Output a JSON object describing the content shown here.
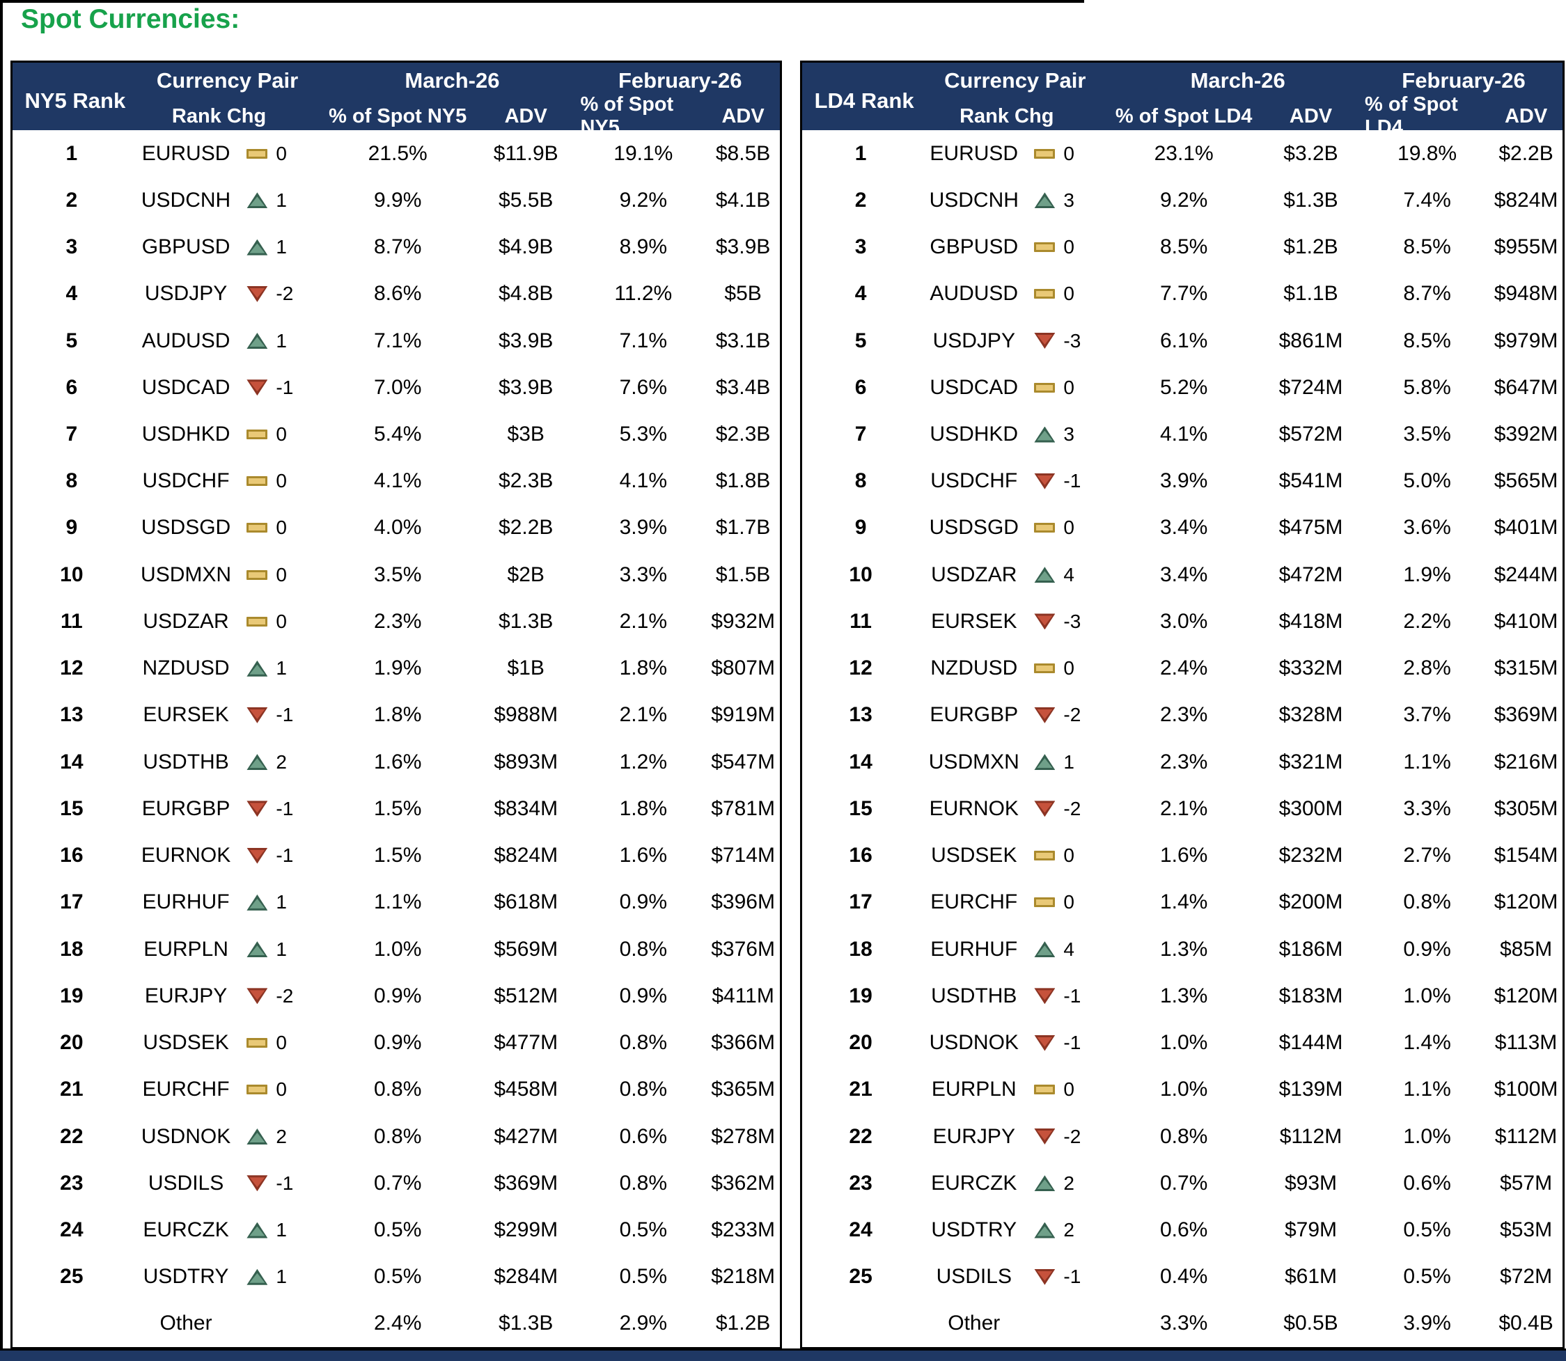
{
  "title": "Spot Currencies:",
  "colors": {
    "header_bg": "#1F3864",
    "title_green": "#17A24B",
    "up_icon": "#6FA089",
    "down_icon": "#C6523C",
    "flat_icon": "#E9C977"
  },
  "tables": [
    {
      "id": "ny5",
      "rank_header": "NY5 Rank",
      "columns": {
        "currency_pair": "Currency Pair",
        "rank_chg": "Rank Chg",
        "march": "March-26",
        "february": "February-26",
        "pct": "% of Spot NY5",
        "adv": "ADV"
      },
      "rows": [
        {
          "rank": "1",
          "pair": "EURUSD",
          "dir": "flat",
          "chg": "0",
          "mar_pct": "21.5%",
          "mar_adv": "$11.9B",
          "feb_pct": "19.1%",
          "feb_adv": "$8.5B"
        },
        {
          "rank": "2",
          "pair": "USDCNH",
          "dir": "up",
          "chg": "1",
          "mar_pct": "9.9%",
          "mar_adv": "$5.5B",
          "feb_pct": "9.2%",
          "feb_adv": "$4.1B"
        },
        {
          "rank": "3",
          "pair": "GBPUSD",
          "dir": "up",
          "chg": "1",
          "mar_pct": "8.7%",
          "mar_adv": "$4.9B",
          "feb_pct": "8.9%",
          "feb_adv": "$3.9B"
        },
        {
          "rank": "4",
          "pair": "USDJPY",
          "dir": "down",
          "chg": "-2",
          "mar_pct": "8.6%",
          "mar_adv": "$4.8B",
          "feb_pct": "11.2%",
          "feb_adv": "$5B"
        },
        {
          "rank": "5",
          "pair": "AUDUSD",
          "dir": "up",
          "chg": "1",
          "mar_pct": "7.1%",
          "mar_adv": "$3.9B",
          "feb_pct": "7.1%",
          "feb_adv": "$3.1B"
        },
        {
          "rank": "6",
          "pair": "USDCAD",
          "dir": "down",
          "chg": "-1",
          "mar_pct": "7.0%",
          "mar_adv": "$3.9B",
          "feb_pct": "7.6%",
          "feb_adv": "$3.4B"
        },
        {
          "rank": "7",
          "pair": "USDHKD",
          "dir": "flat",
          "chg": "0",
          "mar_pct": "5.4%",
          "mar_adv": "$3B",
          "feb_pct": "5.3%",
          "feb_adv": "$2.3B"
        },
        {
          "rank": "8",
          "pair": "USDCHF",
          "dir": "flat",
          "chg": "0",
          "mar_pct": "4.1%",
          "mar_adv": "$2.3B",
          "feb_pct": "4.1%",
          "feb_adv": "$1.8B"
        },
        {
          "rank": "9",
          "pair": "USDSGD",
          "dir": "flat",
          "chg": "0",
          "mar_pct": "4.0%",
          "mar_adv": "$2.2B",
          "feb_pct": "3.9%",
          "feb_adv": "$1.7B"
        },
        {
          "rank": "10",
          "pair": "USDMXN",
          "dir": "flat",
          "chg": "0",
          "mar_pct": "3.5%",
          "mar_adv": "$2B",
          "feb_pct": "3.3%",
          "feb_adv": "$1.5B"
        },
        {
          "rank": "11",
          "pair": "USDZAR",
          "dir": "flat",
          "chg": "0",
          "mar_pct": "2.3%",
          "mar_adv": "$1.3B",
          "feb_pct": "2.1%",
          "feb_adv": "$932M"
        },
        {
          "rank": "12",
          "pair": "NZDUSD",
          "dir": "up",
          "chg": "1",
          "mar_pct": "1.9%",
          "mar_adv": "$1B",
          "feb_pct": "1.8%",
          "feb_adv": "$807M"
        },
        {
          "rank": "13",
          "pair": "EURSEK",
          "dir": "down",
          "chg": "-1",
          "mar_pct": "1.8%",
          "mar_adv": "$988M",
          "feb_pct": "2.1%",
          "feb_adv": "$919M"
        },
        {
          "rank": "14",
          "pair": "USDTHB",
          "dir": "up",
          "chg": "2",
          "mar_pct": "1.6%",
          "mar_adv": "$893M",
          "feb_pct": "1.2%",
          "feb_adv": "$547M"
        },
        {
          "rank": "15",
          "pair": "EURGBP",
          "dir": "down",
          "chg": "-1",
          "mar_pct": "1.5%",
          "mar_adv": "$834M",
          "feb_pct": "1.8%",
          "feb_adv": "$781M"
        },
        {
          "rank": "16",
          "pair": "EURNOK",
          "dir": "down",
          "chg": "-1",
          "mar_pct": "1.5%",
          "mar_adv": "$824M",
          "feb_pct": "1.6%",
          "feb_adv": "$714M"
        },
        {
          "rank": "17",
          "pair": "EURHUF",
          "dir": "up",
          "chg": "1",
          "mar_pct": "1.1%",
          "mar_adv": "$618M",
          "feb_pct": "0.9%",
          "feb_adv": "$396M"
        },
        {
          "rank": "18",
          "pair": "EURPLN",
          "dir": "up",
          "chg": "1",
          "mar_pct": "1.0%",
          "mar_adv": "$569M",
          "feb_pct": "0.8%",
          "feb_adv": "$376M"
        },
        {
          "rank": "19",
          "pair": "EURJPY",
          "dir": "down",
          "chg": "-2",
          "mar_pct": "0.9%",
          "mar_adv": "$512M",
          "feb_pct": "0.9%",
          "feb_adv": "$411M"
        },
        {
          "rank": "20",
          "pair": "USDSEK",
          "dir": "flat",
          "chg": "0",
          "mar_pct": "0.9%",
          "mar_adv": "$477M",
          "feb_pct": "0.8%",
          "feb_adv": "$366M"
        },
        {
          "rank": "21",
          "pair": "EURCHF",
          "dir": "flat",
          "chg": "0",
          "mar_pct": "0.8%",
          "mar_adv": "$458M",
          "feb_pct": "0.8%",
          "feb_adv": "$365M"
        },
        {
          "rank": "22",
          "pair": "USDNOK",
          "dir": "up",
          "chg": "2",
          "mar_pct": "0.8%",
          "mar_adv": "$427M",
          "feb_pct": "0.6%",
          "feb_adv": "$278M"
        },
        {
          "rank": "23",
          "pair": "USDILS",
          "dir": "down",
          "chg": "-1",
          "mar_pct": "0.7%",
          "mar_adv": "$369M",
          "feb_pct": "0.8%",
          "feb_adv": "$362M"
        },
        {
          "rank": "24",
          "pair": "EURCZK",
          "dir": "up",
          "chg": "1",
          "mar_pct": "0.5%",
          "mar_adv": "$299M",
          "feb_pct": "0.5%",
          "feb_adv": "$233M"
        },
        {
          "rank": "25",
          "pair": "USDTRY",
          "dir": "up",
          "chg": "1",
          "mar_pct": "0.5%",
          "mar_adv": "$284M",
          "feb_pct": "0.5%",
          "feb_adv": "$218M"
        },
        {
          "rank": "",
          "pair": "Other",
          "dir": "none",
          "chg": "",
          "mar_pct": "2.4%",
          "mar_adv": "$1.3B",
          "feb_pct": "2.9%",
          "feb_adv": "$1.2B",
          "other": true
        }
      ]
    },
    {
      "id": "ld4",
      "rank_header": "LD4 Rank",
      "columns": {
        "currency_pair": "Currency Pair",
        "rank_chg": "Rank Chg",
        "march": "March-26",
        "february": "February-26",
        "pct": "% of Spot LD4",
        "adv": "ADV"
      },
      "rows": [
        {
          "rank": "1",
          "pair": "EURUSD",
          "dir": "flat",
          "chg": "0",
          "mar_pct": "23.1%",
          "mar_adv": "$3.2B",
          "feb_pct": "19.8%",
          "feb_adv": "$2.2B"
        },
        {
          "rank": "2",
          "pair": "USDCNH",
          "dir": "up",
          "chg": "3",
          "mar_pct": "9.2%",
          "mar_adv": "$1.3B",
          "feb_pct": "7.4%",
          "feb_adv": "$824M"
        },
        {
          "rank": "3",
          "pair": "GBPUSD",
          "dir": "flat",
          "chg": "0",
          "mar_pct": "8.5%",
          "mar_adv": "$1.2B",
          "feb_pct": "8.5%",
          "feb_adv": "$955M"
        },
        {
          "rank": "4",
          "pair": "AUDUSD",
          "dir": "flat",
          "chg": "0",
          "mar_pct": "7.7%",
          "mar_adv": "$1.1B",
          "feb_pct": "8.7%",
          "feb_adv": "$948M"
        },
        {
          "rank": "5",
          "pair": "USDJPY",
          "dir": "down",
          "chg": "-3",
          "mar_pct": "6.1%",
          "mar_adv": "$861M",
          "feb_pct": "8.5%",
          "feb_adv": "$979M"
        },
        {
          "rank": "6",
          "pair": "USDCAD",
          "dir": "flat",
          "chg": "0",
          "mar_pct": "5.2%",
          "mar_adv": "$724M",
          "feb_pct": "5.8%",
          "feb_adv": "$647M"
        },
        {
          "rank": "7",
          "pair": "USDHKD",
          "dir": "up",
          "chg": "3",
          "mar_pct": "4.1%",
          "mar_adv": "$572M",
          "feb_pct": "3.5%",
          "feb_adv": "$392M"
        },
        {
          "rank": "8",
          "pair": "USDCHF",
          "dir": "down",
          "chg": "-1",
          "mar_pct": "3.9%",
          "mar_adv": "$541M",
          "feb_pct": "5.0%",
          "feb_adv": "$565M"
        },
        {
          "rank": "9",
          "pair": "USDSGD",
          "dir": "flat",
          "chg": "0",
          "mar_pct": "3.4%",
          "mar_adv": "$475M",
          "feb_pct": "3.6%",
          "feb_adv": "$401M"
        },
        {
          "rank": "10",
          "pair": "USDZAR",
          "dir": "up",
          "chg": "4",
          "mar_pct": "3.4%",
          "mar_adv": "$472M",
          "feb_pct": "1.9%",
          "feb_adv": "$244M"
        },
        {
          "rank": "11",
          "pair": "EURSEK",
          "dir": "down",
          "chg": "-3",
          "mar_pct": "3.0%",
          "mar_adv": "$418M",
          "feb_pct": "2.2%",
          "feb_adv": "$410M"
        },
        {
          "rank": "12",
          "pair": "NZDUSD",
          "dir": "flat",
          "chg": "0",
          "mar_pct": "2.4%",
          "mar_adv": "$332M",
          "feb_pct": "2.8%",
          "feb_adv": "$315M"
        },
        {
          "rank": "13",
          "pair": "EURGBP",
          "dir": "down",
          "chg": "-2",
          "mar_pct": "2.3%",
          "mar_adv": "$328M",
          "feb_pct": "3.7%",
          "feb_adv": "$369M"
        },
        {
          "rank": "14",
          "pair": "USDMXN",
          "dir": "up",
          "chg": "1",
          "mar_pct": "2.3%",
          "mar_adv": "$321M",
          "feb_pct": "1.1%",
          "feb_adv": "$216M"
        },
        {
          "rank": "15",
          "pair": "EURNOK",
          "dir": "down",
          "chg": "-2",
          "mar_pct": "2.1%",
          "mar_adv": "$300M",
          "feb_pct": "3.3%",
          "feb_adv": "$305M"
        },
        {
          "rank": "16",
          "pair": "USDSEK",
          "dir": "flat",
          "chg": "0",
          "mar_pct": "1.6%",
          "mar_adv": "$232M",
          "feb_pct": "2.7%",
          "feb_adv": "$154M"
        },
        {
          "rank": "17",
          "pair": "EURCHF",
          "dir": "flat",
          "chg": "0",
          "mar_pct": "1.4%",
          "mar_adv": "$200M",
          "feb_pct": "0.8%",
          "feb_adv": "$120M"
        },
        {
          "rank": "18",
          "pair": "EURHUF",
          "dir": "up",
          "chg": "4",
          "mar_pct": "1.3%",
          "mar_adv": "$186M",
          "feb_pct": "0.9%",
          "feb_adv": "$85M"
        },
        {
          "rank": "19",
          "pair": "USDTHB",
          "dir": "down",
          "chg": "-1",
          "mar_pct": "1.3%",
          "mar_adv": "$183M",
          "feb_pct": "1.0%",
          "feb_adv": "$120M"
        },
        {
          "rank": "20",
          "pair": "USDNOK",
          "dir": "down",
          "chg": "-1",
          "mar_pct": "1.0%",
          "mar_adv": "$144M",
          "feb_pct": "1.4%",
          "feb_adv": "$113M"
        },
        {
          "rank": "21",
          "pair": "EURPLN",
          "dir": "flat",
          "chg": "0",
          "mar_pct": "1.0%",
          "mar_adv": "$139M",
          "feb_pct": "1.1%",
          "feb_adv": "$100M"
        },
        {
          "rank": "22",
          "pair": "EURJPY",
          "dir": "down",
          "chg": "-2",
          "mar_pct": "0.8%",
          "mar_adv": "$112M",
          "feb_pct": "1.0%",
          "feb_adv": "$112M"
        },
        {
          "rank": "23",
          "pair": "EURCZK",
          "dir": "up",
          "chg": "2",
          "mar_pct": "0.7%",
          "mar_adv": "$93M",
          "feb_pct": "0.6%",
          "feb_adv": "$57M"
        },
        {
          "rank": "24",
          "pair": "USDTRY",
          "dir": "up",
          "chg": "2",
          "mar_pct": "0.6%",
          "mar_adv": "$79M",
          "feb_pct": "0.5%",
          "feb_adv": "$53M"
        },
        {
          "rank": "25",
          "pair": "USDILS",
          "dir": "down",
          "chg": "-1",
          "mar_pct": "0.4%",
          "mar_adv": "$61M",
          "feb_pct": "0.5%",
          "feb_adv": "$72M"
        },
        {
          "rank": "",
          "pair": "Other",
          "dir": "none",
          "chg": "",
          "mar_pct": "3.3%",
          "mar_adv": "$0.5B",
          "feb_pct": "3.9%",
          "feb_adv": "$0.4B",
          "other": true
        }
      ]
    }
  ]
}
